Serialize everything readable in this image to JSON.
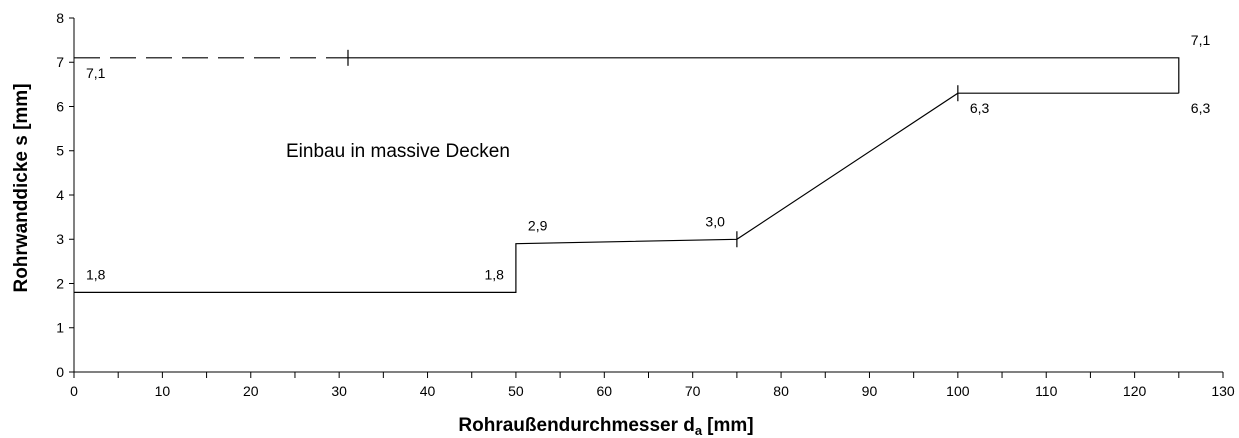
{
  "chart_data": {
    "type": "line",
    "xlabel": {
      "text": "Rohraußendurchmesser d",
      "subscript": "a",
      "unit": "[mm]"
    },
    "ylabel": "Rohrwanddicke s [mm]",
    "xlim": [
      0,
      130
    ],
    "ylim": [
      0,
      8
    ],
    "x_ticks": [
      0,
      10,
      20,
      30,
      40,
      50,
      60,
      70,
      80,
      90,
      100,
      110,
      120,
      130
    ],
    "x_minor_step": 5,
    "y_ticks": [
      0,
      1,
      2,
      3,
      4,
      5,
      6,
      7,
      8
    ],
    "grid": false,
    "legend": "none",
    "line_color": "#000000",
    "series": [
      {
        "points": [
          [
            0,
            7.1
          ],
          [
            31,
            7.1
          ]
        ],
        "dashed": true
      },
      {
        "points": [
          [
            31,
            7.1
          ],
          [
            125,
            7.1
          ],
          [
            125,
            6.3
          ]
        ],
        "dashed": false
      },
      {
        "points": [
          [
            0,
            1.8
          ],
          [
            50,
            1.8
          ],
          [
            50,
            2.9
          ],
          [
            75,
            3.0
          ],
          [
            100,
            6.3
          ],
          [
            125,
            6.3
          ]
        ],
        "dashed": false
      }
    ],
    "markers": [
      [
        31,
        7.1
      ],
      [
        75,
        3.0
      ],
      [
        100,
        6.3
      ]
    ],
    "data_labels": [
      {
        "text": "7,1",
        "x": 0,
        "y": 7.1,
        "pos": "below-right"
      },
      {
        "text": "7,1",
        "x": 125,
        "y": 7.1,
        "pos": "above-right"
      },
      {
        "text": "6,3",
        "x": 100,
        "y": 6.3,
        "pos": "below-right"
      },
      {
        "text": "6,3",
        "x": 125,
        "y": 6.3,
        "pos": "below-right"
      },
      {
        "text": "1,8",
        "x": 0,
        "y": 1.8,
        "pos": "above-right"
      },
      {
        "text": "1,8",
        "x": 50,
        "y": 1.8,
        "pos": "above-left"
      },
      {
        "text": "2,9",
        "x": 50,
        "y": 2.9,
        "pos": "above-right"
      },
      {
        "text": "3,0",
        "x": 75,
        "y": 3.0,
        "pos": "above-left"
      }
    ],
    "annotations": [
      "Einbau in massive Decken"
    ]
  }
}
